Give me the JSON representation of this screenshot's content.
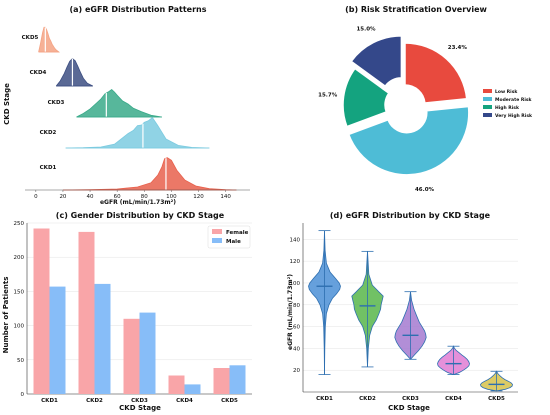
{
  "colors": {
    "ckd1": "#e8604c",
    "ckd2": "#7ccbe0",
    "ckd3": "#3aaa8a",
    "ckd4": "#3d4f82",
    "ckd5": "#f4a384",
    "low": "#e84a3e",
    "moderate": "#4ebcd6",
    "high": "#14a37f",
    "very_high": "#34488a",
    "female": "#f9a5a8",
    "male": "#87bdf8",
    "v1": "#4b8fd6",
    "v2": "#58b64a",
    "v3": "#a57ad0",
    "v4": "#e07cd3",
    "v5": "#d6c24a",
    "violin_line": "#2e6fb0",
    "grid": "#e3e3e3"
  },
  "chart_data": [
    {
      "panel": "a",
      "type": "area",
      "title": "(a) eGFR Distribution Patterns",
      "xlabel": "eGFR (mL/min/1.73m²)",
      "ylabel": "CKD Stage",
      "xlim": [
        -8,
        158
      ],
      "xticks": [
        0,
        20,
        40,
        60,
        80,
        100,
        120,
        140
      ],
      "series": [
        {
          "name": "CKD1",
          "color_key": "ckd1",
          "range": [
            20,
            148
          ],
          "median": 96,
          "x": [
            20,
            40,
            60,
            75,
            85,
            90,
            93,
            95,
            97,
            100,
            104,
            110,
            118,
            128,
            140,
            148
          ],
          "density": [
            0,
            0.01,
            0.03,
            0.09,
            0.22,
            0.45,
            0.7,
            0.95,
            0.98,
            0.9,
            0.6,
            0.3,
            0.12,
            0.04,
            0.01,
            0
          ]
        },
        {
          "name": "CKD2",
          "color_key": "ckd2",
          "range": [
            22,
            128
          ],
          "median": 79,
          "x": [
            22,
            35,
            48,
            58,
            63,
            68,
            72,
            75,
            78,
            80,
            83,
            86,
            90,
            96,
            105,
            115,
            128
          ],
          "density": [
            0,
            0.01,
            0.03,
            0.12,
            0.28,
            0.45,
            0.55,
            0.7,
            0.72,
            0.8,
            0.85,
            0.95,
            0.7,
            0.28,
            0.08,
            0.02,
            0
          ]
        },
        {
          "name": "CKD3",
          "color_key": "ckd3",
          "range": [
            30,
            93
          ],
          "median": 52,
          "x": [
            30,
            35,
            40,
            44,
            48,
            51,
            54,
            56,
            58,
            60,
            64,
            68,
            72,
            78,
            85,
            93
          ],
          "density": [
            0,
            0.12,
            0.28,
            0.45,
            0.62,
            0.8,
            0.88,
            0.95,
            0.86,
            0.75,
            0.55,
            0.45,
            0.3,
            0.18,
            0.06,
            0
          ]
        },
        {
          "name": "CKD4",
          "color_key": "ckd4",
          "range": [
            15,
            42
          ],
          "median": 27,
          "x": [
            15,
            18,
            21,
            23,
            25,
            27,
            29,
            31,
            33,
            35,
            38,
            42
          ],
          "density": [
            0,
            0.18,
            0.45,
            0.68,
            0.88,
            0.98,
            0.9,
            0.7,
            0.48,
            0.28,
            0.1,
            0
          ]
        },
        {
          "name": "CKD5",
          "color_key": "ckd5",
          "range": [
            2,
            17
          ],
          "median": 7,
          "x": [
            2,
            3.5,
            5,
            6,
            7,
            8,
            9,
            10,
            11,
            12,
            13,
            14,
            15,
            17
          ],
          "density": [
            0,
            0.35,
            0.75,
            0.95,
            0.95,
            0.85,
            0.7,
            0.52,
            0.42,
            0.3,
            0.22,
            0.14,
            0.08,
            0
          ]
        }
      ]
    },
    {
      "panel": "b",
      "type": "pie",
      "title": "(b) Risk Stratification Overview",
      "slices": [
        {
          "label": "Low Risk",
          "value": 23.4,
          "pct_label": "23.4%",
          "color_key": "low",
          "explode": false
        },
        {
          "label": "Moderate Risk",
          "value": 46.0,
          "pct_label": "46.0%",
          "color_key": "moderate",
          "explode": true
        },
        {
          "label": "High Risk",
          "value": 15.7,
          "pct_label": "15.7%",
          "color_key": "high",
          "explode": false
        },
        {
          "label": "Very High Risk",
          "value": 15.0,
          "pct_label": "15.0%",
          "color_key": "very_high",
          "explode": true
        }
      ],
      "legend_position": "right"
    },
    {
      "panel": "c",
      "type": "bar",
      "title": "(c) Gender Distribution by CKD Stage",
      "xlabel": "CKD Stage",
      "ylabel": "Number of Patients",
      "ylim": [
        0,
        250
      ],
      "yticks": [
        0,
        50,
        100,
        150,
        200,
        250
      ],
      "categories": [
        "CKD1",
        "CKD2",
        "CKD3",
        "CKD4",
        "CKD5"
      ],
      "series": [
        {
          "name": "Female",
          "color_key": "female",
          "values": [
            242,
            237,
            110,
            27,
            38
          ]
        },
        {
          "name": "Male",
          "color_key": "male",
          "values": [
            157,
            161,
            119,
            14,
            42
          ]
        }
      ],
      "legend_position": "top-right",
      "grid": true
    },
    {
      "panel": "d",
      "type": "violin",
      "title": "(d) eGFR Distribution by CKD Stage",
      "xlabel": "CKD Stage",
      "ylabel": "eGFR (mL/min/1.73m²)",
      "ylim": [
        0,
        155
      ],
      "yticks": [
        20,
        40,
        60,
        80,
        100,
        120,
        140
      ],
      "categories": [
        "CKD1",
        "CKD2",
        "CKD3",
        "CKD4",
        "CKD5"
      ],
      "violins": [
        {
          "name": "CKD1",
          "color_key": "v1",
          "min": 16,
          "max": 148,
          "median": 97,
          "y": [
            16,
            40,
            60,
            72,
            80,
            86,
            90,
            94,
            97,
            100,
            104,
            110,
            118,
            130,
            148
          ],
          "w": [
            0,
            0.02,
            0.05,
            0.12,
            0.28,
            0.5,
            0.75,
            0.95,
            1.0,
            0.92,
            0.7,
            0.35,
            0.12,
            0.04,
            0
          ]
        },
        {
          "name": "CKD2",
          "color_key": "v2",
          "min": 23,
          "max": 129,
          "median": 79,
          "y": [
            23,
            40,
            52,
            60,
            66,
            72,
            76,
            80,
            84,
            88,
            92,
            98,
            108,
            129
          ],
          "w": [
            0,
            0.05,
            0.14,
            0.3,
            0.55,
            0.72,
            0.82,
            0.85,
            0.92,
            0.98,
            0.7,
            0.3,
            0.08,
            0
          ]
        },
        {
          "name": "CKD3",
          "color_key": "v3",
          "min": 30,
          "max": 92,
          "median": 52,
          "y": [
            30,
            34,
            38,
            42,
            46,
            50,
            53,
            56,
            60,
            64,
            70,
            76,
            84,
            92
          ],
          "w": [
            0,
            0.25,
            0.5,
            0.72,
            0.88,
            0.98,
            0.95,
            0.88,
            0.72,
            0.55,
            0.38,
            0.22,
            0.07,
            0
          ]
        },
        {
          "name": "CKD4",
          "color_key": "v4",
          "min": 16,
          "max": 42,
          "median": 26,
          "y": [
            16,
            18,
            20,
            22,
            24,
            26,
            28,
            30,
            32,
            34,
            36,
            38,
            40,
            42
          ],
          "w": [
            0,
            0.38,
            0.62,
            0.82,
            0.96,
            1.0,
            0.95,
            0.85,
            0.7,
            0.52,
            0.35,
            0.18,
            0.06,
            0
          ]
        },
        {
          "name": "CKD5",
          "color_key": "v5",
          "min": 1,
          "max": 19,
          "median": 7,
          "y": [
            1,
            2.5,
            4,
            5.5,
            7,
            8.5,
            10,
            11.5,
            13,
            15,
            17,
            19
          ],
          "w": [
            0,
            0.55,
            0.85,
            0.98,
            1.0,
            0.9,
            0.72,
            0.52,
            0.36,
            0.2,
            0.08,
            0
          ]
        }
      ]
    }
  ]
}
